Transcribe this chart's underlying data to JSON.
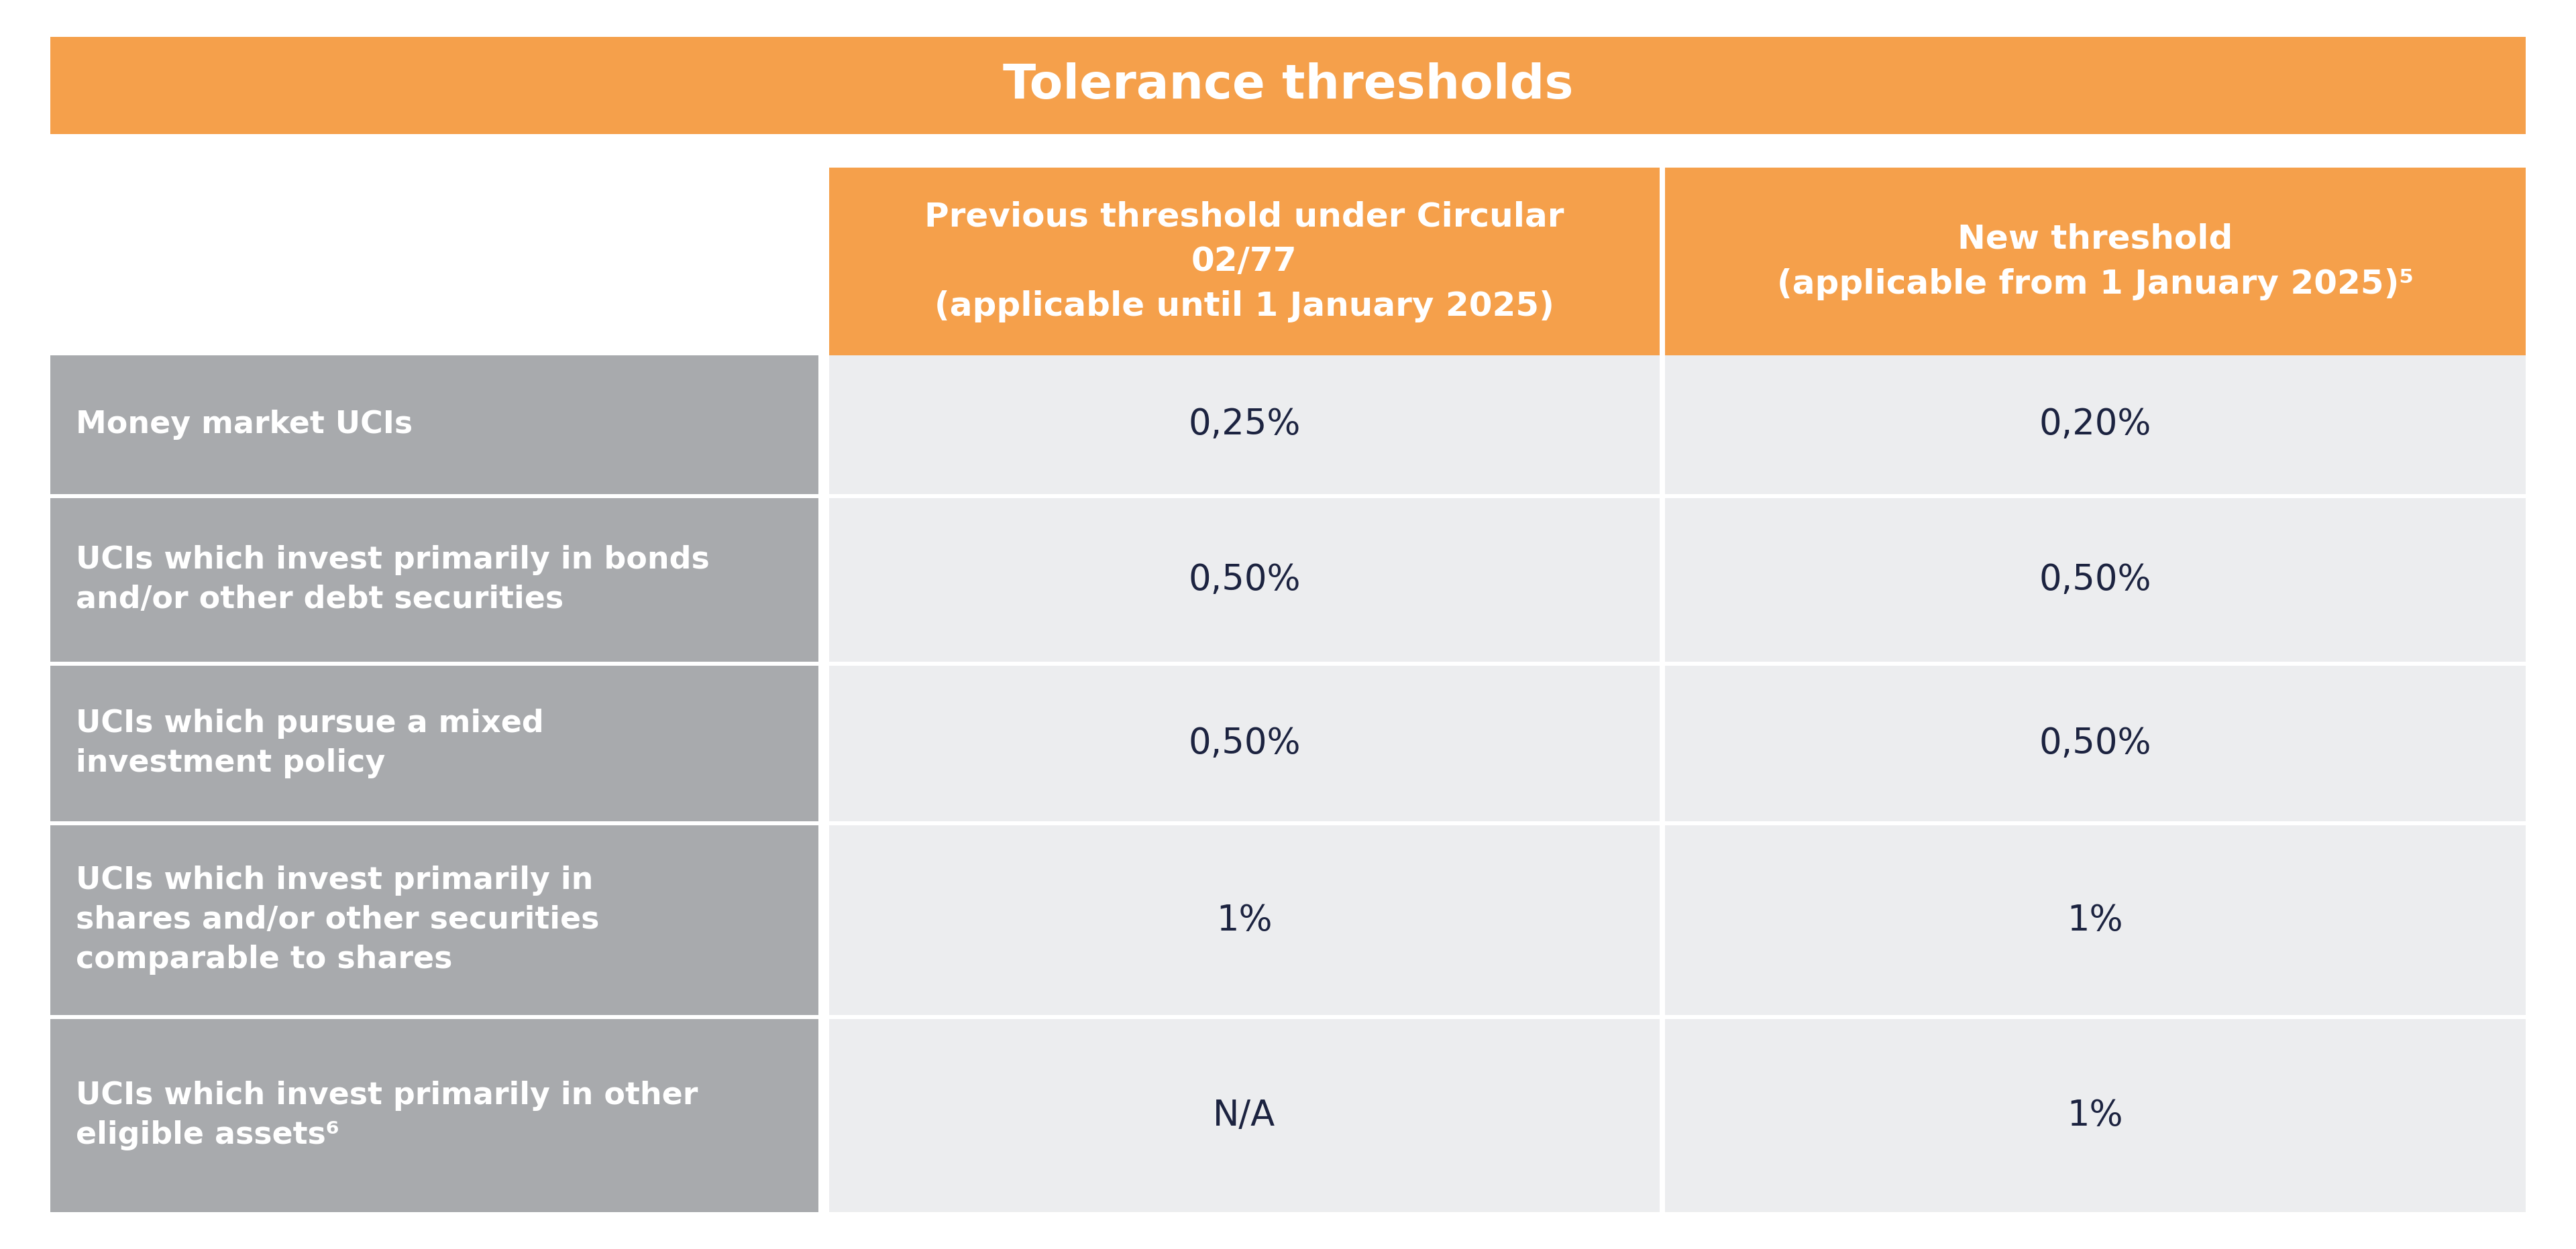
{
  "title": "Tolerance thresholds",
  "title_bg": "#F5A04B",
  "title_text_color": "#FFFFFF",
  "header_bg": "#F5A04B",
  "header_text_color": "#FFFFFF",
  "col1_header": "Previous threshold under Circular\n02/77\n(applicable until 1 January 2025)",
  "col2_header": "New threshold\n(applicable from 1 January 2025)⁵",
  "row_label_bg": "#A8AAAD",
  "row_label_text_color": "#FFFFFF",
  "data_bg": "#ECEDEF",
  "data_text_color": "#1C2340",
  "separator_color": "#FFFFFF",
  "outer_bg": "#FFFFFF",
  "rows": [
    {
      "label": "Money market UCIs",
      "col1": "0,25%",
      "col2": "0,20%"
    },
    {
      "label": "UCIs which invest primarily in bonds\nand/or other debt securities",
      "col1": "0,50%",
      "col2": "0,50%"
    },
    {
      "label": "UCIs which pursue a mixed\ninvestment policy",
      "col1": "0,50%",
      "col2": "0,50%"
    },
    {
      "label": "UCIs which invest primarily in\nshares and/or other securities\ncomparable to shares",
      "col1": "1%",
      "col2": "1%"
    },
    {
      "label": "UCIs which invest primarily in other\neligible assets⁶",
      "col1": "N/A",
      "col2": "1%"
    }
  ],
  "fig_width": 38.4,
  "fig_height": 18.63
}
